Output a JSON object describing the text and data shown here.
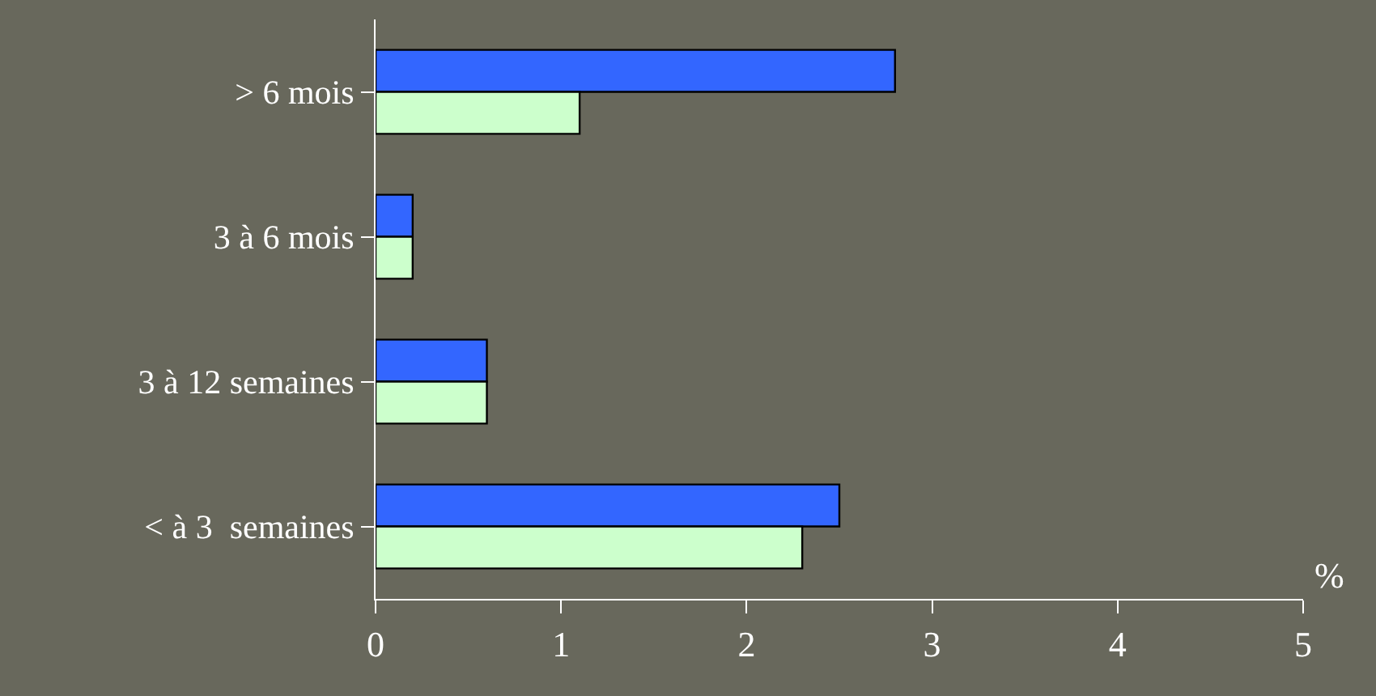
{
  "chart_data": {
    "type": "bar",
    "orientation": "horizontal",
    "categories": [
      "> 6 mois",
      "3 à 6 mois",
      "3 à 12 semaines",
      "< à 3  semaines"
    ],
    "series": [
      {
        "color": "#3366ff",
        "values": [
          2.8,
          0.2,
          0.6,
          2.5
        ]
      },
      {
        "color": "#ccffcc",
        "values": [
          1.1,
          0.2,
          0.6,
          2.3
        ]
      }
    ],
    "xlim": [
      0,
      5
    ],
    "xticks": [
      0,
      1,
      2,
      3,
      4,
      5
    ],
    "xlabel": "%",
    "grid": false,
    "legend": false
  }
}
